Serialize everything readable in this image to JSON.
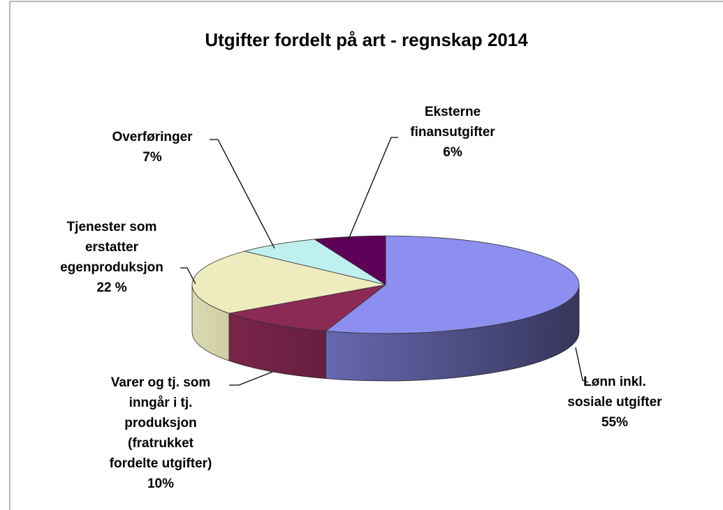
{
  "chart_data": {
    "type": "pie3d",
    "title": "Utgifter fordelt på art - regnskap 2014",
    "categories": [
      "Lønn inkl.\nsosiale utgifter",
      "Varer og tj. som\ninngår i tj.\nproduksjon\n(fratrukket\nfordelte utgifter)",
      "Tjenester som\nerstatter\negenproduksjon",
      "Overføringer",
      "Eksterne\nfinansutgifter"
    ],
    "values": [
      55,
      10,
      22,
      7,
      6
    ],
    "value_labels": [
      "55%",
      "10%",
      "22 %",
      "7%",
      "6%"
    ],
    "colors": [
      "#8c8ef0",
      "#8b2a55",
      "#eeecbf",
      "#bff0f0",
      "#5e0058"
    ]
  }
}
